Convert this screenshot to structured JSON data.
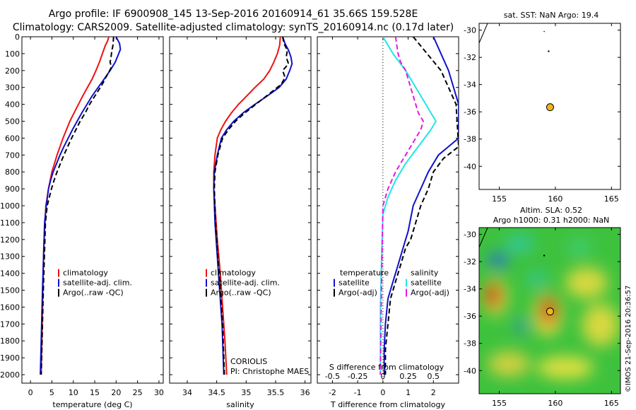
{
  "header": {
    "title_line1": "Argo profile: IF 6900908_145 13-Sep-2016 20160914_61 35.66S 159.528E",
    "title_line2": "Climatology: CARS2009. Satellite-adjusted climatology: synTS_20160914.nc (0.17d later)"
  },
  "side": {
    "sst_title": "sat. SST: NaN Argo: 19.4",
    "alt_title_1": "Altim. SLA: 0.52",
    "alt_title_2": "Argo h1000: 0.31 h2000: NaN",
    "credit": "©IMOS 21-Sep-2016 20:36:57"
  },
  "annotations": {
    "institution": "CORIOLIS",
    "pi": "PI: Christophe MAES"
  },
  "colors": {
    "climatology": "#ee1111",
    "satellite": "#1111cc",
    "argo": "#000000",
    "sal_satellite": "#22e6e6",
    "sal_argo": "#e619e6",
    "float_marker": "#f2b41c"
  },
  "chart_data": [
    {
      "type": "line",
      "panel": "temperature",
      "xlabel": "temperature (deg C)",
      "ylabel": "",
      "xlim": [
        -2,
        31
      ],
      "ylim": [
        2050,
        0
      ],
      "xticks": [
        0,
        5,
        10,
        15,
        20,
        25,
        30
      ],
      "yticks": [
        0,
        100,
        200,
        300,
        400,
        500,
        600,
        700,
        800,
        900,
        1000,
        1100,
        1200,
        1300,
        1400,
        1500,
        1600,
        1700,
        1800,
        1900,
        2000
      ],
      "legend": [
        "climatology",
        "satellite-adj. clim.",
        "Argo(..raw -QC)"
      ],
      "series": [
        {
          "name": "climatology",
          "x": [
            18.3,
            18.0,
            17.5,
            16.8,
            16.1,
            15.3,
            14.4,
            13.3,
            12.2,
            11.2,
            10.2,
            9.2,
            8.4,
            7.6,
            6.9,
            6.2,
            5.6,
            5.0,
            4.6,
            4.2,
            3.9,
            3.6,
            3.4,
            3.1,
            2.9,
            2.7,
            2.5
          ],
          "y": [
            0,
            25,
            50,
            100,
            150,
            200,
            250,
            300,
            350,
            400,
            450,
            500,
            550,
            600,
            650,
            700,
            750,
            800,
            850,
            900,
            950,
            1000,
            1100,
            1250,
            1500,
            1750,
            2000
          ]
        },
        {
          "name": "satellite-adj. clim.",
          "x": [
            20.0,
            20.8,
            21.0,
            20.6,
            19.8,
            18.6,
            17.2,
            15.8,
            14.4,
            13.2,
            12.0,
            10.9,
            9.8,
            8.8,
            7.8,
            6.9,
            6.1,
            5.3,
            4.7,
            4.2,
            3.7,
            3.3,
            2.8,
            2.3
          ],
          "y": [
            0,
            40,
            75,
            100,
            150,
            200,
            250,
            300,
            350,
            400,
            450,
            500,
            550,
            600,
            650,
            700,
            750,
            800,
            850,
            900,
            1000,
            1100,
            1500,
            2000
          ]
        },
        {
          "name": "Argo(..raw -QC)",
          "x": [
            19.4,
            19.3,
            19.2,
            19.0,
            18.8,
            18.6,
            18.9,
            18.5,
            17.6,
            16.8,
            15.8,
            14.8,
            13.8,
            12.8,
            11.6,
            10.6,
            9.6,
            8.7,
            7.8,
            7.0,
            6.2,
            5.5,
            4.9,
            4.4,
            3.9,
            3.5,
            3.0,
            2.5
          ],
          "y": [
            0,
            40,
            60,
            80,
            120,
            150,
            180,
            200,
            240,
            280,
            320,
            360,
            400,
            450,
            500,
            550,
            600,
            650,
            700,
            750,
            800,
            850,
            900,
            950,
            1000,
            1100,
            1500,
            2000
          ]
        }
      ]
    },
    {
      "type": "line",
      "panel": "salinity",
      "xlabel": "salinity",
      "ylabel": "",
      "xlim": [
        33.7,
        36.1
      ],
      "ylim": [
        2050,
        0
      ],
      "xticks": [
        34,
        34.5,
        35,
        35.5,
        36
      ],
      "legend": [
        "climatology",
        "satellite-adj. clim.",
        "Argo(..raw -QC)"
      ],
      "series": [
        {
          "name": "climatology",
          "x": [
            35.58,
            35.57,
            35.53,
            35.47,
            35.4,
            35.3,
            35.15,
            35.01,
            34.87,
            34.75,
            34.65,
            34.57,
            34.51,
            34.47,
            34.45,
            34.45,
            34.47,
            34.51,
            34.56,
            34.6,
            34.64,
            34.67
          ],
          "y": [
            0,
            50,
            100,
            150,
            200,
            250,
            300,
            350,
            400,
            450,
            500,
            550,
            600,
            700,
            800,
            900,
            1000,
            1200,
            1400,
            1600,
            1800,
            2000
          ]
        },
        {
          "name": "satellite-adj. clim.",
          "x": [
            35.62,
            35.66,
            35.72,
            35.76,
            35.78,
            35.74,
            35.68,
            35.56,
            35.36,
            35.15,
            34.95,
            34.79,
            34.67,
            34.58,
            34.51,
            34.46,
            34.45,
            34.47,
            34.51,
            34.55,
            34.59,
            34.62
          ],
          "y": [
            0,
            40,
            80,
            120,
            160,
            200,
            250,
            300,
            350,
            400,
            450,
            500,
            550,
            600,
            700,
            800,
            900,
            1100,
            1300,
            1500,
            1700,
            2000
          ]
        },
        {
          "name": "Argo(..raw -QC)",
          "x": [
            35.62,
            35.64,
            35.7,
            35.68,
            35.72,
            35.62,
            35.66,
            35.6,
            35.42,
            35.2,
            34.98,
            34.82,
            34.7,
            34.6,
            34.52,
            34.47,
            34.46,
            34.48,
            34.52,
            34.56,
            34.6,
            34.63
          ],
          "y": [
            0,
            40,
            80,
            120,
            160,
            200,
            240,
            280,
            330,
            390,
            450,
            500,
            550,
            600,
            700,
            800,
            900,
            1100,
            1300,
            1500,
            1700,
            2000
          ]
        }
      ]
    },
    {
      "type": "line",
      "panel": "difference",
      "xlabel": "T difference from climatology",
      "xlabel_top": "S difference from climatology",
      "ylabel": "",
      "xlim": [
        -2.6,
        3.0
      ],
      "ylim": [
        2050,
        0
      ],
      "xticks": [
        -2,
        -1,
        0,
        1,
        2
      ],
      "xticks_s": [
        "-0.5",
        "-0.25",
        "0",
        "0.25",
        "0.5"
      ],
      "legend_temperature_title": "temperature",
      "legend_salinity_title": "salinity",
      "legend": [
        "satellite",
        "Argo(-adj)",
        "satellite",
        "Argo(-adj)"
      ],
      "series": [
        {
          "name": "satellite",
          "x": [
            2.0,
            2.6,
            3.0,
            3.0,
            2.6,
            2.2,
            1.8,
            1.5,
            1.2,
            1.0,
            0.8,
            0.6,
            0.4,
            0.2,
            0.1,
            0.05,
            0.05
          ],
          "y": [
            0,
            200,
            400,
            600,
            650,
            700,
            800,
            900,
            1000,
            1150,
            1250,
            1350,
            1450,
            1550,
            1700,
            1850,
            2000
          ]
        },
        {
          "name": "Argo(-adj)",
          "x": [
            1.2,
            2.3,
            2.9,
            3.0,
            2.4,
            2.0,
            1.8,
            1.5,
            1.3,
            1.1,
            0.9,
            0.7,
            0.5,
            0.3,
            0.2,
            0.1,
            0.1
          ],
          "y": [
            0,
            200,
            400,
            650,
            720,
            800,
            900,
            1000,
            1100,
            1200,
            1250,
            1350,
            1450,
            1550,
            1700,
            1850,
            2000
          ]
        },
        {
          "name": "satellite",
          "x": [
            0.0,
            0.4,
            0.9,
            1.3,
            1.7,
            1.9,
            2.1,
            1.9,
            1.4,
            0.9,
            0.5,
            0.2,
            0.0,
            -0.05,
            -0.1,
            -0.1
          ],
          "y": [
            0,
            100,
            200,
            300,
            400,
            450,
            500,
            550,
            650,
            750,
            850,
            950,
            1050,
            1300,
            1600,
            2000
          ]
        },
        {
          "name": "Argo(-adj)",
          "x": [
            0.5,
            0.6,
            0.7,
            0.9,
            1.1,
            1.3,
            1.4,
            1.6,
            1.5,
            1.3,
            0.9,
            0.5,
            0.2,
            0.0,
            -0.05,
            -0.1
          ],
          "y": [
            0,
            100,
            150,
            200,
            300,
            400,
            450,
            500,
            550,
            600,
            700,
            800,
            900,
            1000,
            1400,
            2000
          ]
        }
      ]
    },
    {
      "type": "scatter",
      "panel": "sst_map",
      "xlim": [
        153.2,
        165.8
      ],
      "ylim": [
        -41.7,
        -29.5
      ],
      "xticks": [
        155,
        160,
        165
      ],
      "yticks": [
        -30,
        -32,
        -34,
        -36,
        -38,
        -40
      ],
      "x": [
        159.528
      ],
      "y": [
        -35.66
      ]
    },
    {
      "type": "heatmap",
      "panel": "altimetry_map",
      "xlim": [
        153.2,
        165.8
      ],
      "ylim": [
        -41.7,
        -29.5
      ],
      "xticks": [
        155,
        160,
        165
      ],
      "yticks": [
        -30,
        -32,
        -34,
        -36,
        -38,
        -40
      ],
      "float_position": [
        159.528,
        -35.66
      ]
    }
  ]
}
